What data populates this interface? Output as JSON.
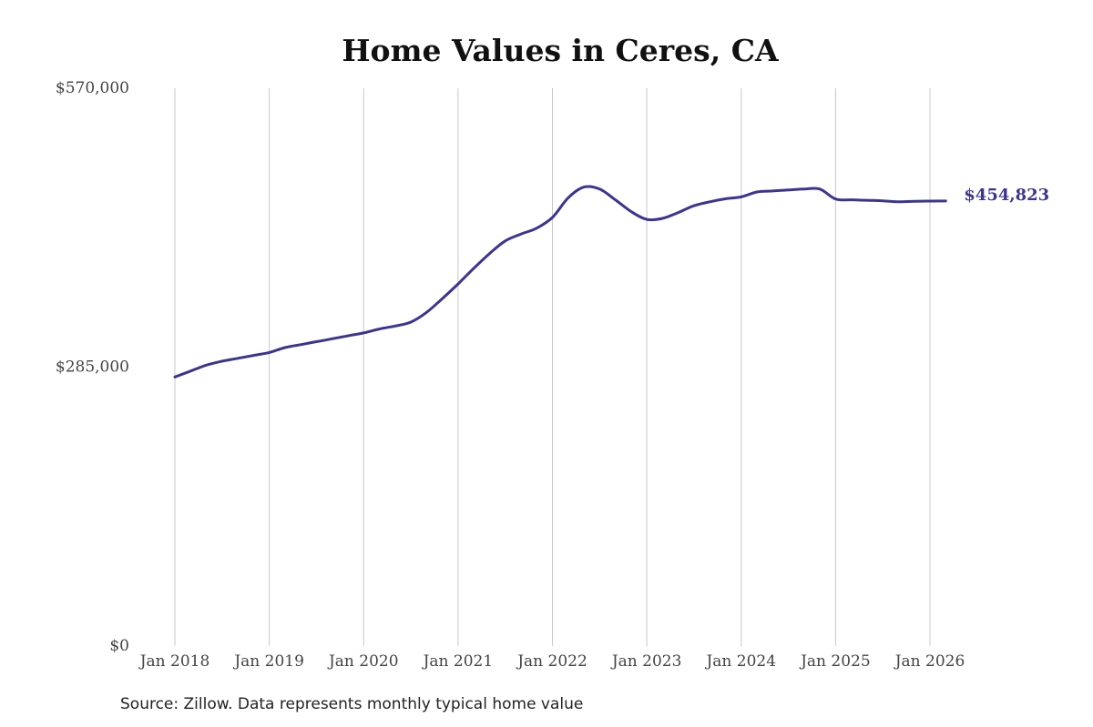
{
  "chart_data": {
    "type": "line",
    "title": "Home Values in Ceres, CA",
    "xlabel": "",
    "ylabel": "",
    "ylim": [
      0,
      570000
    ],
    "yticks": [
      0,
      285000,
      570000
    ],
    "ytick_labels": [
      "$0",
      "$285,000",
      "$570,000"
    ],
    "xlim": [
      "2018-01",
      "2026-03"
    ],
    "xticks": [
      "2018-01",
      "2019-01",
      "2020-01",
      "2021-01",
      "2022-01",
      "2023-01",
      "2024-01",
      "2025-01",
      "2026-01"
    ],
    "xtick_labels": [
      "Jan 2018",
      "Jan 2019",
      "Jan 2020",
      "Jan 2021",
      "Jan 2022",
      "Jan 2023",
      "Jan 2024",
      "Jan 2025",
      "Jan 2026"
    ],
    "grid": "vertical",
    "end_label": "$454,823",
    "series": [
      {
        "color": "#3b3590",
        "x": [
          "2018-01",
          "2018-03",
          "2018-05",
          "2018-07",
          "2018-09",
          "2018-11",
          "2019-01",
          "2019-03",
          "2019-05",
          "2019-07",
          "2019-09",
          "2019-11",
          "2020-01",
          "2020-03",
          "2020-05",
          "2020-07",
          "2020-09",
          "2020-11",
          "2021-01",
          "2021-03",
          "2021-05",
          "2021-07",
          "2021-09",
          "2021-11",
          "2022-01",
          "2022-03",
          "2022-05",
          "2022-07",
          "2022-09",
          "2022-11",
          "2023-01",
          "2023-03",
          "2023-05",
          "2023-07",
          "2023-09",
          "2023-11",
          "2024-01",
          "2024-03",
          "2024-05",
          "2024-07",
          "2024-09",
          "2024-11",
          "2025-01",
          "2025-03",
          "2025-05",
          "2025-07",
          "2025-09",
          "2025-11",
          "2026-01",
          "2026-03"
        ],
        "values": [
          275000,
          281000,
          287000,
          291000,
          294000,
          297000,
          300000,
          305000,
          308000,
          311000,
          314000,
          317000,
          320000,
          324000,
          327000,
          331000,
          341000,
          355000,
          370000,
          386000,
          401000,
          414000,
          421000,
          427000,
          438000,
          458000,
          469000,
          467000,
          456000,
          444000,
          436000,
          437000,
          443000,
          450000,
          454000,
          457000,
          459000,
          464000,
          465000,
          466000,
          467000,
          467000,
          456800,
          456000,
          455500,
          455000,
          454000,
          454500,
          454700,
          454823
        ]
      }
    ]
  },
  "source": "Source: Zillow. Data represents monthly typical home value"
}
